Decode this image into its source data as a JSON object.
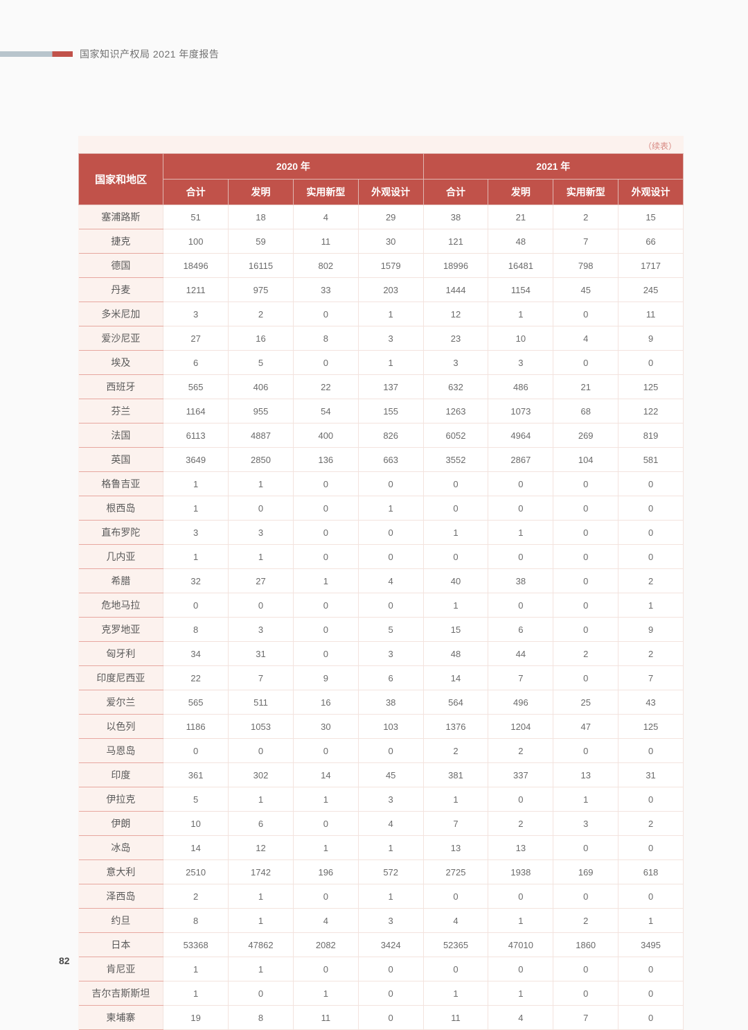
{
  "header": {
    "title": "国家知识产权局 2021 年度报告"
  },
  "page_number": "82",
  "table": {
    "continued_label": "（续表）",
    "row_header": "国家和地区",
    "year_2020": "2020 年",
    "year_2021": "2021 年",
    "sub_headers": {
      "total": "合计",
      "invention": "发明",
      "utility": "实用新型",
      "design": "外观设计"
    },
    "colors": {
      "header_bg": "#c1524a",
      "header_fg": "#ffffff",
      "row_label_bg": "#fcf2ee",
      "cell_bg": "#ffffff",
      "cell_fg": "#6a6a6a",
      "border": "#f3e3de",
      "row_border": "#e7a79f",
      "continued_color": "#d88a83"
    },
    "col_widths_pct": [
      14,
      10.75,
      10.75,
      10.75,
      10.75,
      10.75,
      10.75,
      10.75,
      10.75
    ],
    "rows": [
      {
        "label": "塞浦路斯",
        "y2020": [
          51,
          18,
          4,
          29
        ],
        "y2021": [
          38,
          21,
          2,
          15
        ]
      },
      {
        "label": "捷克",
        "y2020": [
          100,
          59,
          11,
          30
        ],
        "y2021": [
          121,
          48,
          7,
          66
        ]
      },
      {
        "label": "德国",
        "y2020": [
          18496,
          16115,
          802,
          1579
        ],
        "y2021": [
          18996,
          16481,
          798,
          1717
        ]
      },
      {
        "label": "丹麦",
        "y2020": [
          1211,
          975,
          33,
          203
        ],
        "y2021": [
          1444,
          1154,
          45,
          245
        ]
      },
      {
        "label": "多米尼加",
        "y2020": [
          3,
          2,
          0,
          1
        ],
        "y2021": [
          12,
          1,
          0,
          11
        ]
      },
      {
        "label": "爱沙尼亚",
        "y2020": [
          27,
          16,
          8,
          3
        ],
        "y2021": [
          23,
          10,
          4,
          9
        ]
      },
      {
        "label": "埃及",
        "y2020": [
          6,
          5,
          0,
          1
        ],
        "y2021": [
          3,
          3,
          0,
          0
        ]
      },
      {
        "label": "西班牙",
        "y2020": [
          565,
          406,
          22,
          137
        ],
        "y2021": [
          632,
          486,
          21,
          125
        ]
      },
      {
        "label": "芬兰",
        "y2020": [
          1164,
          955,
          54,
          155
        ],
        "y2021": [
          1263,
          1073,
          68,
          122
        ]
      },
      {
        "label": "法国",
        "y2020": [
          6113,
          4887,
          400,
          826
        ],
        "y2021": [
          6052,
          4964,
          269,
          819
        ]
      },
      {
        "label": "英国",
        "y2020": [
          3649,
          2850,
          136,
          663
        ],
        "y2021": [
          3552,
          2867,
          104,
          581
        ]
      },
      {
        "label": "格鲁吉亚",
        "y2020": [
          1,
          1,
          0,
          0
        ],
        "y2021": [
          0,
          0,
          0,
          0
        ]
      },
      {
        "label": "根西岛",
        "y2020": [
          1,
          0,
          0,
          1
        ],
        "y2021": [
          0,
          0,
          0,
          0
        ]
      },
      {
        "label": "直布罗陀",
        "y2020": [
          3,
          3,
          0,
          0
        ],
        "y2021": [
          1,
          1,
          0,
          0
        ]
      },
      {
        "label": "几内亚",
        "y2020": [
          1,
          1,
          0,
          0
        ],
        "y2021": [
          0,
          0,
          0,
          0
        ]
      },
      {
        "label": "希腊",
        "y2020": [
          32,
          27,
          1,
          4
        ],
        "y2021": [
          40,
          38,
          0,
          2
        ]
      },
      {
        "label": "危地马拉",
        "y2020": [
          0,
          0,
          0,
          0
        ],
        "y2021": [
          1,
          0,
          0,
          1
        ]
      },
      {
        "label": "克罗地亚",
        "y2020": [
          8,
          3,
          0,
          5
        ],
        "y2021": [
          15,
          6,
          0,
          9
        ]
      },
      {
        "label": "匈牙利",
        "y2020": [
          34,
          31,
          0,
          3
        ],
        "y2021": [
          48,
          44,
          2,
          2
        ]
      },
      {
        "label": "印度尼西亚",
        "y2020": [
          22,
          7,
          9,
          6
        ],
        "y2021": [
          14,
          7,
          0,
          7
        ]
      },
      {
        "label": "爱尔兰",
        "y2020": [
          565,
          511,
          16,
          38
        ],
        "y2021": [
          564,
          496,
          25,
          43
        ]
      },
      {
        "label": "以色列",
        "y2020": [
          1186,
          1053,
          30,
          103
        ],
        "y2021": [
          1376,
          1204,
          47,
          125
        ]
      },
      {
        "label": "马恩岛",
        "y2020": [
          0,
          0,
          0,
          0
        ],
        "y2021": [
          2,
          2,
          0,
          0
        ]
      },
      {
        "label": "印度",
        "y2020": [
          361,
          302,
          14,
          45
        ],
        "y2021": [
          381,
          337,
          13,
          31
        ]
      },
      {
        "label": "伊拉克",
        "y2020": [
          5,
          1,
          1,
          3
        ],
        "y2021": [
          1,
          0,
          1,
          0
        ]
      },
      {
        "label": "伊朗",
        "y2020": [
          10,
          6,
          0,
          4
        ],
        "y2021": [
          7,
          2,
          3,
          2
        ]
      },
      {
        "label": "冰岛",
        "y2020": [
          14,
          12,
          1,
          1
        ],
        "y2021": [
          13,
          13,
          0,
          0
        ]
      },
      {
        "label": "意大利",
        "y2020": [
          2510,
          1742,
          196,
          572
        ],
        "y2021": [
          2725,
          1938,
          169,
          618
        ]
      },
      {
        "label": "泽西岛",
        "y2020": [
          2,
          1,
          0,
          1
        ],
        "y2021": [
          0,
          0,
          0,
          0
        ]
      },
      {
        "label": "约旦",
        "y2020": [
          8,
          1,
          4,
          3
        ],
        "y2021": [
          4,
          1,
          2,
          1
        ]
      },
      {
        "label": "日本",
        "y2020": [
          53368,
          47862,
          2082,
          3424
        ],
        "y2021": [
          52365,
          47010,
          1860,
          3495
        ]
      },
      {
        "label": "肯尼亚",
        "y2020": [
          1,
          1,
          0,
          0
        ],
        "y2021": [
          0,
          0,
          0,
          0
        ]
      },
      {
        "label": "吉尔吉斯斯坦",
        "y2020": [
          1,
          0,
          1,
          0
        ],
        "y2021": [
          1,
          1,
          0,
          0
        ]
      },
      {
        "label": "柬埔寨",
        "y2020": [
          19,
          8,
          11,
          0
        ],
        "y2021": [
          11,
          4,
          7,
          0
        ]
      }
    ]
  }
}
